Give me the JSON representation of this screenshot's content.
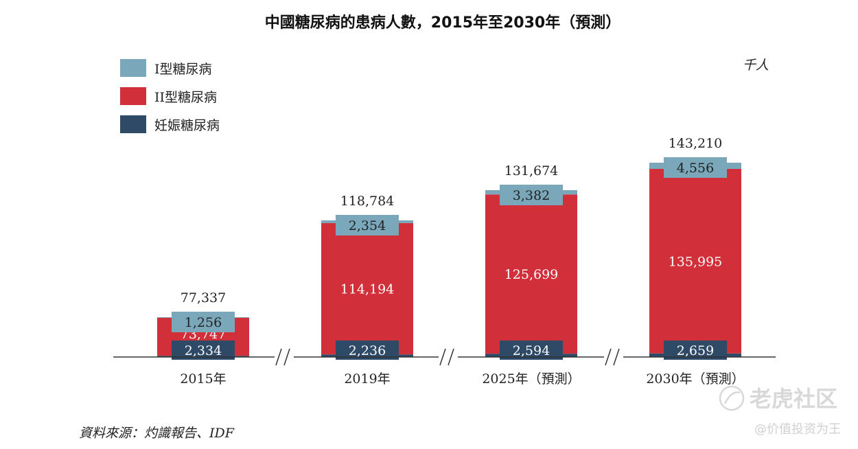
{
  "chart_data": {
    "type": "bar",
    "stacked": true,
    "title": "中國糖尿病的患病人數，2015年至2030年（預測）",
    "unit": "千人",
    "categories": [
      "2015年",
      "2019年",
      "2025年（預測）",
      "2030年（預測）"
    ],
    "series": [
      {
        "name": "妊娠糖尿病",
        "color": "#2f4a66",
        "values": [
          2334,
          2236,
          2594,
          2659
        ]
      },
      {
        "name": "II型糖尿病",
        "color": "#d1303a",
        "values": [
          73747,
          114194,
          125699,
          135995
        ]
      },
      {
        "name": "I型糖尿病",
        "color": "#7aa7ba",
        "values": [
          1256,
          2354,
          3382,
          4556
        ]
      }
    ],
    "totals": [
      77337,
      118784,
      131674,
      143210
    ],
    "legend": [
      "I型糖尿病",
      "II型糖尿病",
      "妊娠糖尿病"
    ],
    "axis_break": true,
    "source": "資料來源：灼識報告、IDF"
  },
  "watermark": {
    "brand": "老虎社区",
    "handle": "@价值投资为王"
  }
}
